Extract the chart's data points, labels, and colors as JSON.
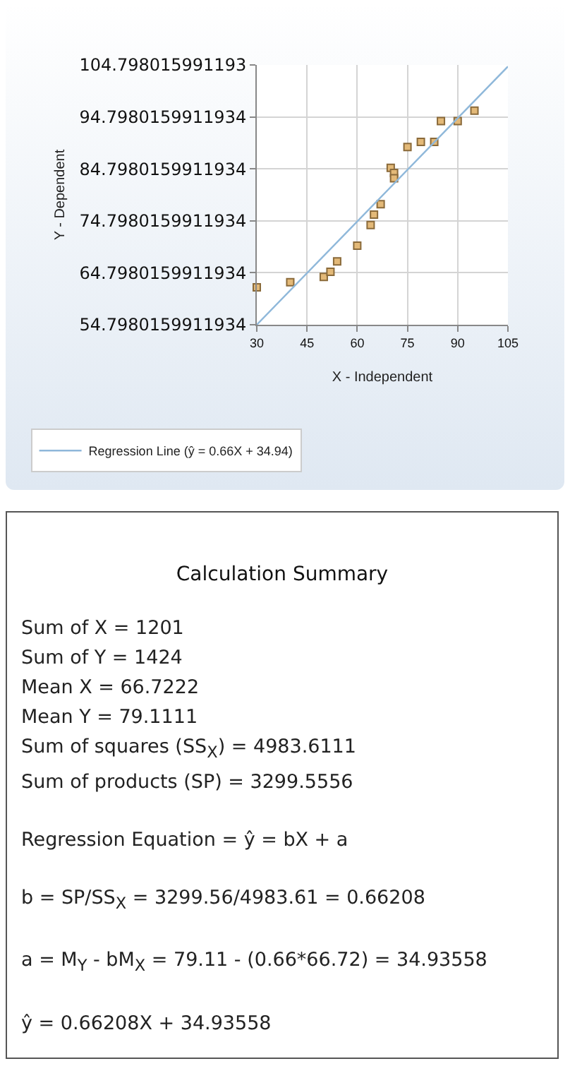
{
  "chart_data": [
    {
      "type": "scatter",
      "xlabel": "X - Independent",
      "ylabel": "Y - Dependent",
      "xlim": [
        30,
        105
      ],
      "xticks": [
        30,
        45,
        60,
        75,
        90,
        105
      ],
      "ylim": [
        54.7980159911934,
        104.798015991193
      ],
      "yticks": [
        54.7980159911934,
        64.7980159911934,
        74.7980159911934,
        84.7980159911934,
        94.7980159911934,
        104.798015991193
      ],
      "grid": true,
      "legend": "bottom",
      "marker": "square",
      "series": [
        {
          "type": "scatter",
          "color": "#e3b978",
          "x": [
            30,
            40,
            50,
            52,
            54,
            60,
            64,
            65,
            67,
            70,
            71,
            71,
            75,
            79,
            83,
            85,
            90,
            95
          ],
          "values": [
            62,
            63,
            64,
            65,
            67,
            70,
            74,
            76,
            78,
            85,
            84,
            83,
            89,
            90,
            90,
            94,
            94,
            96
          ]
        },
        {
          "type": "line",
          "name": "Regression Line (ŷ = 0.66X + 34.94)",
          "color": "#8fb8da",
          "marker": "none",
          "x": [
            30,
            105
          ],
          "values": [
            54.8,
            104.5
          ]
        }
      ]
    },
    {
      "type": "other",
      "title": "Calculation Summary",
      "annotations": [
        "Sum of X = 1201",
        "Sum of Y = 1424",
        "Mean X = 66.7222",
        "Mean Y = 79.1111",
        "Sum of squares (SS$_{X}$) = 4983.6111",
        "Sum of products (SP) = 3299.5556",
        "Regression Equation = ŷ = bX + a",
        "b = SP/SS$_{X}$ = 3299.56/4983.61 = 0.66208",
        "a = M$_{Y}$ - bM$_{X}$ = 79.11 - (0.66*66.72) = 34.93558",
        "ŷ = 0.66208X + 34.93558"
      ]
    }
  ]
}
